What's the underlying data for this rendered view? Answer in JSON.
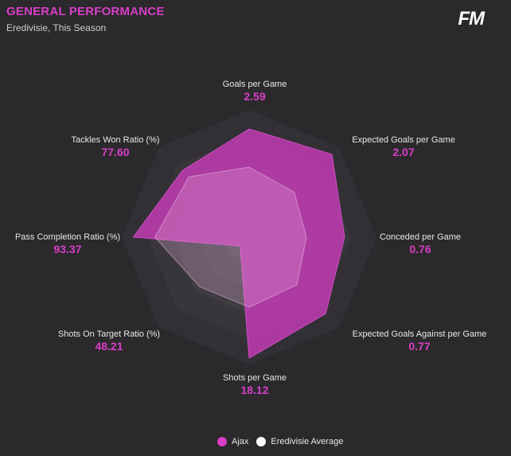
{
  "header": {
    "title": "GENERAL PERFORMANCE",
    "subtitle": "Eredivisie, This Season",
    "logo": "FM"
  },
  "colors": {
    "accent": "#d93fc8",
    "background": "#2b292c",
    "team_fill": "#c13bb3",
    "average_fill": "#e7b0dc"
  },
  "chart_data": {
    "type": "radar",
    "axes": [
      {
        "label": "Goals per Game",
        "value": "2.59"
      },
      {
        "label": "Expected Goals per Game",
        "value": "2.07"
      },
      {
        "label": "Conceded per Game",
        "value": "0.76"
      },
      {
        "label": "Expected Goals Against per Game",
        "value": "0.77"
      },
      {
        "label": "Shots per Game",
        "value": "18.12"
      },
      {
        "label": "Shots On Target Ratio (%)",
        "value": "48.21"
      },
      {
        "label": "Pass Completion Ratio (%)",
        "value": "93.37"
      },
      {
        "label": "Tackles Won Ratio (%)",
        "value": "77.60"
      }
    ],
    "series": [
      {
        "name": "Ajax",
        "color": "#c13bb3",
        "relative": [
          0.85,
          0.92,
          0.75,
          0.85,
          0.95,
          0.1,
          0.91,
          0.74
        ]
      },
      {
        "name": "Eredivisie Average",
        "color": "#e7b0dc",
        "relative": [
          0.55,
          0.5,
          0.45,
          0.53,
          0.55,
          0.55,
          0.74,
          0.67
        ]
      }
    ]
  },
  "legend": [
    {
      "label": "Ajax",
      "color": "#d93fc8"
    },
    {
      "label": "Eredivisie Average",
      "color": "#ffffff"
    }
  ]
}
